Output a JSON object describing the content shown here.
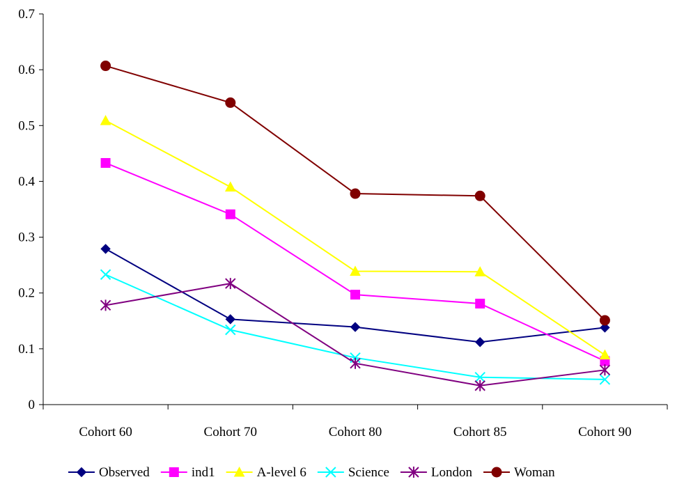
{
  "chart_data": {
    "type": "line",
    "categories": [
      "Cohort 60",
      "Cohort 70",
      "Cohort 80",
      "Cohort 85",
      "Cohort 90"
    ],
    "ylim": [
      0,
      0.7
    ],
    "yticks": [
      "0",
      "0.1",
      "0.2",
      "0.3",
      "0.4",
      "0.5",
      "0.6",
      "0.7"
    ],
    "grid": false,
    "legend_position": "bottom",
    "series": [
      {
        "name": "Observed",
        "values": [
          0.279,
          0.153,
          0.139,
          0.112,
          0.138
        ],
        "color": "#000080",
        "marker": "diamond"
      },
      {
        "name": "ind1",
        "values": [
          0.433,
          0.341,
          0.197,
          0.181,
          0.078
        ],
        "color": "#FF00FF",
        "marker": "square"
      },
      {
        "name": "A-level 6",
        "values": [
          0.509,
          0.39,
          0.239,
          0.238,
          0.089
        ],
        "color": "#FFFF00",
        "marker": "triangle"
      },
      {
        "name": "Science",
        "values": [
          0.233,
          0.134,
          0.084,
          0.049,
          0.045
        ],
        "color": "#00FFFF",
        "marker": "x"
      },
      {
        "name": "London",
        "values": [
          0.178,
          0.217,
          0.074,
          0.034,
          0.062
        ],
        "color": "#800080",
        "marker": "star"
      },
      {
        "name": "Woman",
        "values": [
          0.607,
          0.541,
          0.378,
          0.374,
          0.151
        ],
        "color": "#800000",
        "marker": "circle"
      }
    ]
  }
}
